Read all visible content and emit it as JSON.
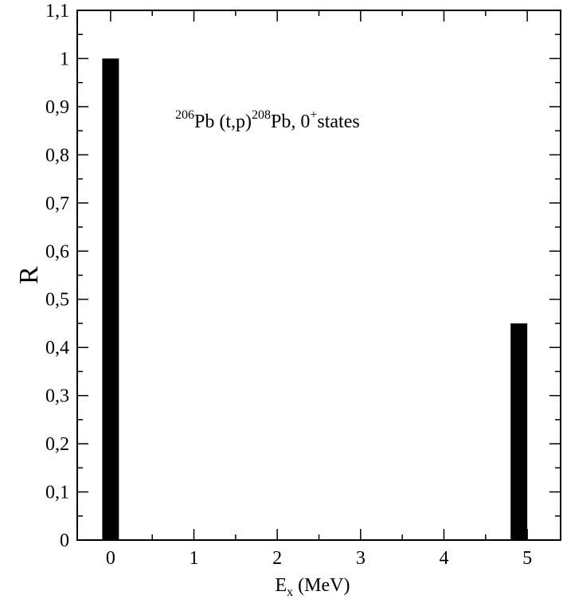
{
  "chart_data": {
    "type": "bar",
    "xlabel": {
      "main": "E",
      "sub": "x",
      "rest": " (MeV)"
    },
    "ylabel": "R",
    "annotation": {
      "parts": [
        {
          "text": "206",
          "sup": true
        },
        {
          "text": "Pb (t,p)",
          "sup": false
        },
        {
          "text": "208",
          "sup": true
        },
        {
          "text": "Pb, 0",
          "sup": false
        },
        {
          "text": "+",
          "sup": true
        },
        {
          "text": "states",
          "sup": false
        }
      ]
    },
    "xlim": [
      -0.4,
      5.4
    ],
    "ylim": [
      0,
      1.1
    ],
    "x_ticks": [
      {
        "value": 0,
        "label": "0"
      },
      {
        "value": 1,
        "label": "1"
      },
      {
        "value": 2,
        "label": "2"
      },
      {
        "value": 3,
        "label": "3"
      },
      {
        "value": 4,
        "label": "4"
      },
      {
        "value": 5,
        "label": "5"
      }
    ],
    "y_ticks": [
      {
        "value": 0,
        "label": "0"
      },
      {
        "value": 0.1,
        "label": "0,1"
      },
      {
        "value": 0.2,
        "label": "0,2"
      },
      {
        "value": 0.3,
        "label": "0,3"
      },
      {
        "value": 0.4,
        "label": "0,4"
      },
      {
        "value": 0.5,
        "label": "0,5"
      },
      {
        "value": 0.6,
        "label": "0,6"
      },
      {
        "value": 0.7,
        "label": "0,7"
      },
      {
        "value": 0.8,
        "label": "0,8"
      },
      {
        "value": 0.9,
        "label": "0,9"
      },
      {
        "value": 1,
        "label": "1"
      },
      {
        "value": 1.1,
        "label": "1,1"
      }
    ],
    "bars": [
      {
        "x": 0.0,
        "y": 1.0
      },
      {
        "x": 4.9,
        "y": 0.45
      }
    ],
    "bar_width": 0.2,
    "grid": false,
    "bar_color": "#000000"
  }
}
